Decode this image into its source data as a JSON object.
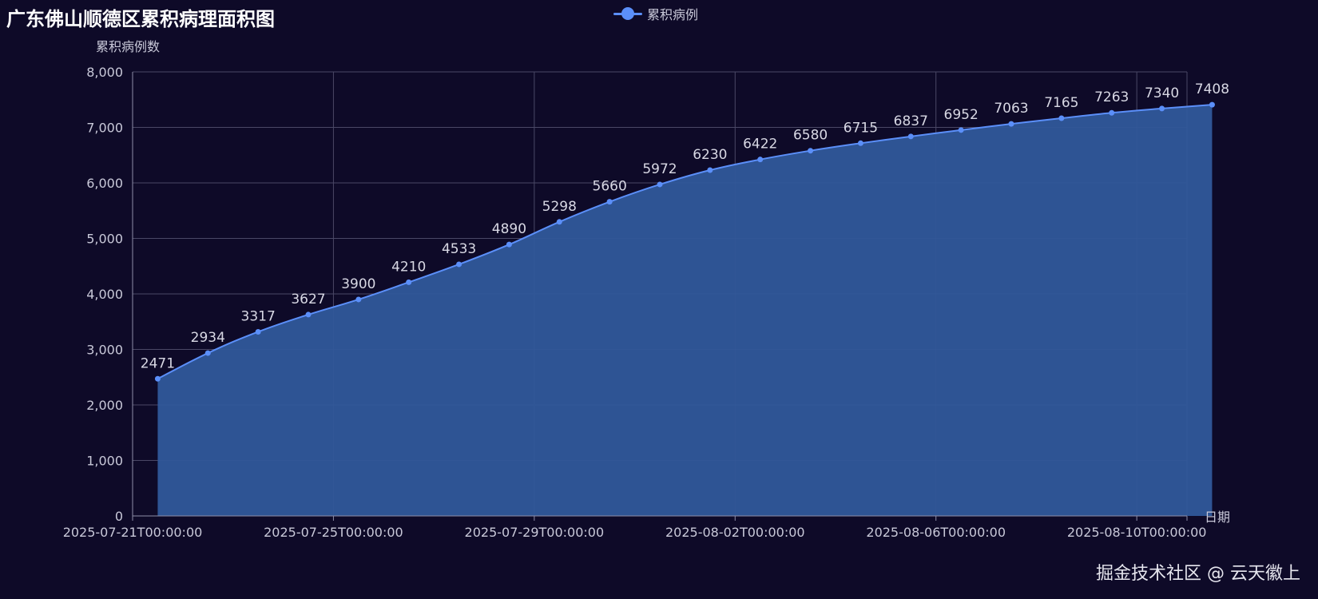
{
  "chart_data": {
    "type": "area",
    "title": "广东佛山顺德区累积病理面积图",
    "xlabel": "日期",
    "ylabel": "累积病例数",
    "legend": [
      "累积病例"
    ],
    "legend_position": "top-center",
    "grid": true,
    "ylim": [
      0,
      8000
    ],
    "yticks": [
      "0",
      "1,000",
      "2,000",
      "3,000",
      "4,000",
      "5,000",
      "6,000",
      "7,000",
      "8,000"
    ],
    "xlim": [
      "2025-07-21T00:00:00",
      "2025-08-11T00:00:00"
    ],
    "xticks": [
      "2025-07-21T00:00:00",
      "2025-07-25T00:00:00",
      "2025-07-29T00:00:00",
      "2025-08-02T00:00:00",
      "2025-08-06T00:00:00",
      "2025-08-10T00:00:00"
    ],
    "series": [
      {
        "name": "累积病例",
        "color": "#5b8ff9",
        "area_color": "#30589a",
        "x": [
          "2025-07-21T12:00:00",
          "2025-07-22T12:00:00",
          "2025-07-23T12:00:00",
          "2025-07-24T12:00:00",
          "2025-07-25T12:00:00",
          "2025-07-26T12:00:00",
          "2025-07-27T12:00:00",
          "2025-07-28T12:00:00",
          "2025-07-29T12:00:00",
          "2025-07-30T12:00:00",
          "2025-07-31T12:00:00",
          "2025-08-01T12:00:00",
          "2025-08-02T12:00:00",
          "2025-08-03T12:00:00",
          "2025-08-04T12:00:00",
          "2025-08-05T12:00:00",
          "2025-08-06T12:00:00",
          "2025-08-07T12:00:00",
          "2025-08-08T12:00:00",
          "2025-08-09T12:00:00",
          "2025-08-10T12:00:00",
          "2025-08-11T12:00:00"
        ],
        "values": [
          2471,
          2934,
          3317,
          3627,
          3900,
          4210,
          4533,
          4890,
          5298,
          5660,
          5972,
          6230,
          6422,
          6580,
          6715,
          6837,
          6952,
          7063,
          7165,
          7263,
          7340,
          7408
        ]
      }
    ]
  },
  "watermark": "掘金技术社区 @ 云天徽上",
  "colors": {
    "background": "#0e0a28",
    "grid": "#4a4866",
    "axis": "#8e8ea8",
    "text": "#c8c8d8",
    "title": "#ffffff"
  }
}
